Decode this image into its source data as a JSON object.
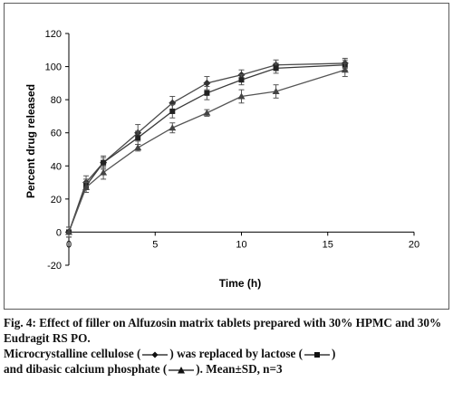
{
  "chart_data": {
    "type": "line",
    "title": "",
    "xlabel": "Time (h)",
    "ylabel": "Percent drug released",
    "xlim": [
      0,
      20
    ],
    "ylim": [
      -20,
      120
    ],
    "xticks": [
      0,
      5,
      10,
      15,
      20
    ],
    "yticks": [
      -20,
      0,
      20,
      40,
      60,
      80,
      100,
      120
    ],
    "grid": false,
    "legend": "none",
    "x": [
      0,
      1,
      2,
      4,
      6,
      8,
      10,
      12,
      16
    ],
    "series": [
      {
        "marker": "diamond",
        "color": "#4a4a4a",
        "values": [
          0,
          30,
          42,
          60,
          78,
          90,
          95,
          101,
          102
        ],
        "error": [
          3,
          4,
          4,
          5,
          4,
          4,
          3,
          3,
          3
        ]
      },
      {
        "marker": "square",
        "color": "#3a3a3a",
        "values": [
          0,
          28,
          42,
          57,
          73,
          84,
          92,
          99,
          101
        ],
        "error": [
          3,
          4,
          3,
          4,
          4,
          4,
          3,
          3,
          3
        ]
      },
      {
        "marker": "triangle",
        "color": "#555555",
        "values": [
          0,
          27,
          36,
          51,
          63,
          72,
          82,
          85,
          98
        ],
        "error": [
          3,
          3,
          4,
          2,
          3,
          2,
          4,
          4,
          4
        ]
      }
    ]
  },
  "caption": {
    "fig_label": "Fig. 4:",
    "fig_text": " Effect of filler on Alfuzosin matrix tablets prepared with 30% HPMC and 30% Eudragit RS PO.",
    "line1_part1": "Microcrystalline cellulose (",
    "line1_part2": ") was replaced by lactose (",
    "line1_part3": ")",
    "line2_part1": "and dibasic calcium phosphate (",
    "line2_part2": "). Mean±SD, n=3"
  }
}
